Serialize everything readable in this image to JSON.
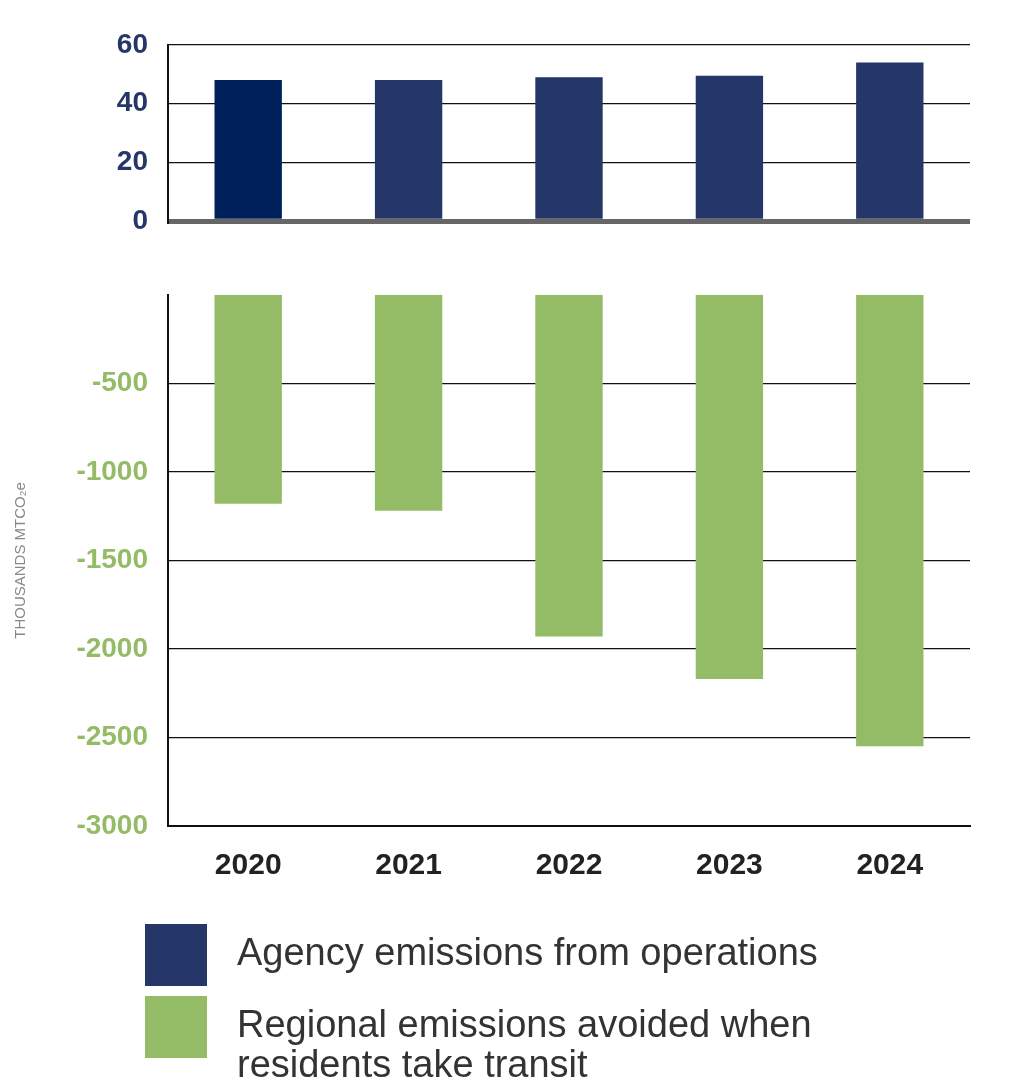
{
  "chart_data": [
    {
      "type": "bar",
      "categories": [
        "2020",
        "2021",
        "2022",
        "2023",
        "2024"
      ],
      "series": [
        {
          "name": "Agency emissions from operations",
          "color": "#253668",
          "colors": [
            "#00205b",
            "#253668",
            "#253668",
            "#253668",
            "#253668"
          ],
          "values": [
            48,
            48,
            49,
            49.5,
            54
          ]
        }
      ],
      "ylim": [
        0,
        60
      ],
      "yticks": [
        0,
        20,
        40,
        60
      ],
      "grid": "y",
      "legend": "bottom",
      "tick_labels": "y"
    },
    {
      "type": "bar",
      "ylabel": "THOUSANDS MTCO₂e",
      "categories": [
        "2020",
        "2021",
        "2022",
        "2023",
        "2024"
      ],
      "series": [
        {
          "name": "Regional emissions avoided when residents take transit",
          "color": "#94bb66",
          "values": [
            -1180,
            -1220,
            -1930,
            -2170,
            -2550
          ]
        }
      ],
      "ylim": [
        -3000,
        0
      ],
      "yticks": [
        -3000,
        -2500,
        -2000,
        -1500,
        -1000,
        -500
      ],
      "grid": "y",
      "legend": "bottom"
    }
  ]
}
